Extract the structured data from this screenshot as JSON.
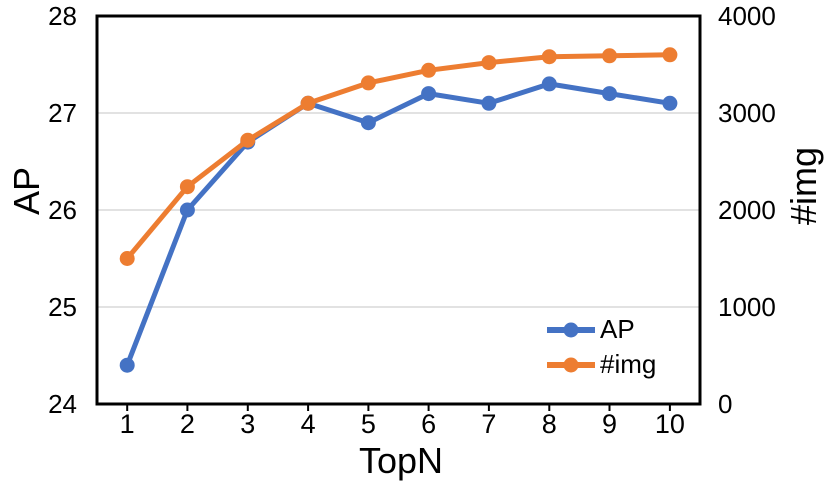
{
  "chart_data": {
    "type": "line",
    "title": "",
    "xlabel": "TopN",
    "ylabel": "AP",
    "y2label": "#img",
    "x": [
      1,
      2,
      3,
      4,
      5,
      6,
      7,
      8,
      9,
      10
    ],
    "y_axis": {
      "label": "AP",
      "min": 24,
      "max": 28,
      "ticks": [
        24,
        25,
        26,
        27,
        28
      ]
    },
    "y2_axis": {
      "label": "#img",
      "min": 0,
      "max": 4000,
      "ticks": [
        0,
        1000,
        2000,
        3000,
        4000
      ]
    },
    "gridlines_at_left_values": [
      25,
      26,
      27
    ],
    "grid": "horizontal-only",
    "legend_position": "inside-bottom-right",
    "series": [
      {
        "name": "AP",
        "axis": "left",
        "color": "#4472C4",
        "marker": "circle",
        "values": [
          24.4,
          26.0,
          26.7,
          27.1,
          26.9,
          27.2,
          27.1,
          27.3,
          27.2,
          27.1
        ]
      },
      {
        "name": "#img",
        "axis": "right",
        "color": "#ED7D31",
        "marker": "circle",
        "values": [
          1500,
          2240,
          2720,
          3100,
          3310,
          3440,
          3520,
          3580,
          3590,
          3600
        ]
      }
    ]
  },
  "colors": {
    "ap_series": "#4472C4",
    "img_series": "#ED7D31",
    "gridline": "#D9D9D9",
    "axis_border": "#000000",
    "background": "#FFFFFF",
    "text": "#000000"
  }
}
